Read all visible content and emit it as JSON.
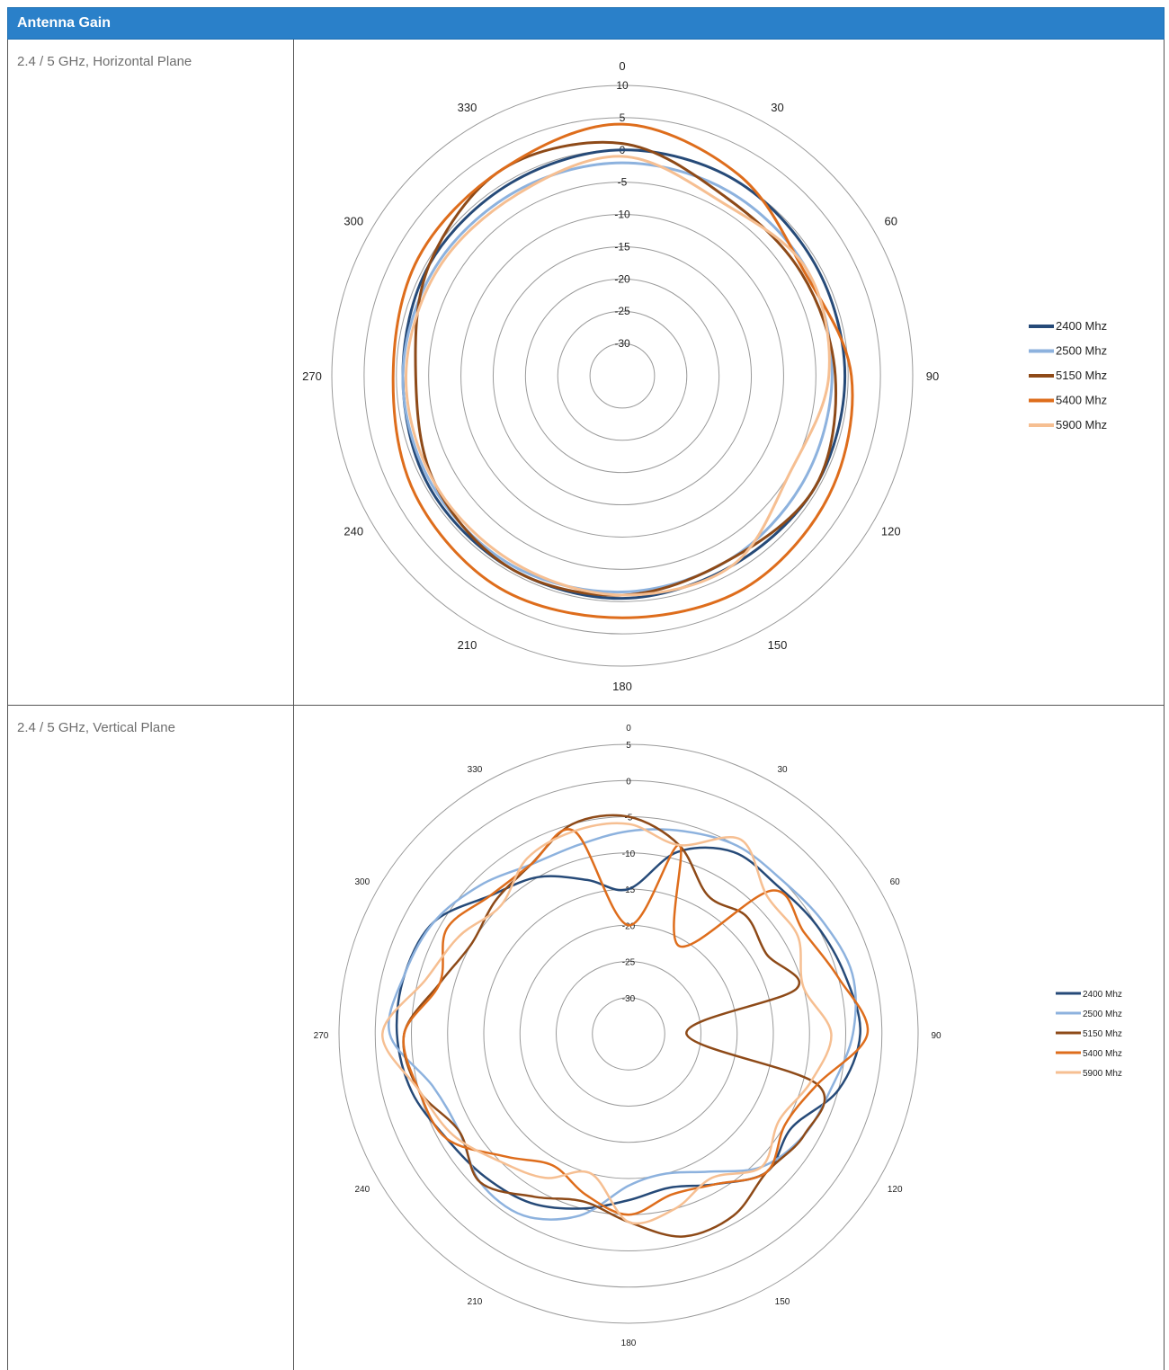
{
  "header": {
    "title": "Antenna Gain"
  },
  "rows": [
    {
      "label": "2.4 / 5 GHz, Horizontal Plane"
    },
    {
      "label": "2.4 / 5 GHz, Vertical Plane"
    }
  ],
  "chart_data": [
    {
      "type": "polar-line",
      "title": "",
      "angle_labels": [
        "0",
        "30",
        "60",
        "90",
        "120",
        "150",
        "180",
        "210",
        "240",
        "270",
        "300",
        "330"
      ],
      "radial_ticks": [
        -30,
        -25,
        -20,
        -15,
        -10,
        -5,
        0,
        5,
        10
      ],
      "rlim": [
        -35,
        10
      ],
      "legend_position": "right",
      "series": [
        {
          "name": "2400 Mhz",
          "color": "#264a78",
          "angles": [
            0,
            30,
            60,
            90,
            120,
            150,
            180,
            210,
            240,
            270,
            300,
            330
          ],
          "values": [
            0,
            0,
            -0.5,
            -0.5,
            -0.5,
            -1,
            -0.5,
            -0.5,
            -0.5,
            -1,
            -0.5,
            -0.5
          ]
        },
        {
          "name": "2500 Mhz",
          "color": "#8db2de",
          "angles": [
            0,
            30,
            60,
            90,
            120,
            150,
            180,
            210,
            240,
            270,
            300,
            330
          ],
          "values": [
            -2,
            -2,
            -2,
            -2.5,
            -2.5,
            -2,
            -1.5,
            -1,
            -1,
            -1,
            -1.5,
            -2
          ]
        },
        {
          "name": "5150 Mhz",
          "color": "#8e4a18",
          "angles": [
            0,
            30,
            60,
            90,
            120,
            150,
            180,
            210,
            240,
            270,
            300,
            330
          ],
          "values": [
            1,
            -3,
            -3,
            -2,
            -0.5,
            -2,
            -1,
            -0.5,
            -1.5,
            -3,
            -0.5,
            2
          ]
        },
        {
          "name": "5400 Mhz",
          "color": "#de6d1c",
          "angles": [
            0,
            30,
            60,
            90,
            120,
            150,
            180,
            210,
            240,
            270,
            300,
            330
          ],
          "values": [
            4,
            1,
            -2.5,
            0.5,
            2,
            3,
            2.5,
            3,
            2,
            0.5,
            1.5,
            2
          ]
        },
        {
          "name": "5900 Mhz",
          "color": "#f6bf92",
          "angles": [
            0,
            30,
            60,
            90,
            120,
            150,
            180,
            210,
            240,
            270,
            300,
            330
          ],
          "values": [
            -1,
            -4,
            -2,
            -3,
            -5,
            -1,
            -1,
            -1.5,
            -1.5,
            -1.5,
            -2,
            -2.5
          ]
        }
      ]
    },
    {
      "type": "polar-line",
      "title": "",
      "angle_labels": [
        "0",
        "30",
        "60",
        "90",
        "120",
        "150",
        "180",
        "210",
        "240",
        "270",
        "300",
        "330"
      ],
      "radial_ticks": [
        -30,
        -25,
        -20,
        -15,
        -10,
        -5,
        0,
        5
      ],
      "rlim": [
        -35,
        5
      ],
      "legend_position": "right",
      "series": [
        {
          "name": "2400 Mhz",
          "color": "#264a78",
          "angles": [
            0,
            15,
            30,
            45,
            60,
            75,
            90,
            105,
            120,
            135,
            150,
            165,
            180,
            195,
            210,
            225,
            240,
            255,
            270,
            285,
            300,
            315,
            330,
            345
          ],
          "values": [
            -15,
            -9,
            -6,
            -6,
            -5,
            -4,
            -3,
            -5,
            -9,
            -8,
            -11,
            -13,
            -12,
            -10,
            -8,
            -7,
            -6,
            -4,
            -3,
            -3,
            -4,
            -8,
            -10,
            -13
          ]
        },
        {
          "name": "2500 Mhz",
          "color": "#8db2de",
          "angles": [
            0,
            15,
            30,
            45,
            60,
            75,
            90,
            105,
            120,
            135,
            150,
            165,
            180,
            195,
            210,
            225,
            240,
            255,
            270,
            285,
            300,
            315,
            330,
            345
          ],
          "values": [
            -7,
            -6,
            -5,
            -5,
            -4,
            -3,
            -4,
            -6,
            -7,
            -9,
            -13,
            -15,
            -14,
            -9,
            -6,
            -6,
            -8,
            -7,
            -2,
            -3,
            -4,
            -6,
            -8,
            -8
          ]
        },
        {
          "name": "5150 Mhz",
          "color": "#8e4a18",
          "angles": [
            0,
            15,
            30,
            45,
            60,
            75,
            90,
            105,
            120,
            135,
            150,
            165,
            180,
            195,
            210,
            225,
            240,
            255,
            270,
            285,
            300,
            315,
            330,
            345
          ],
          "values": [
            -5,
            -8,
            -13,
            -12,
            -13,
            -11,
            -27,
            -8,
            -7,
            -8,
            -6,
            -6,
            -9,
            -11,
            -9,
            -6,
            -8,
            -5,
            -4,
            -8,
            -10,
            -9,
            -8,
            -5
          ]
        },
        {
          "name": "5400 Mhz",
          "color": "#de6d1c",
          "angles": [
            0,
            15,
            30,
            45,
            60,
            75,
            90,
            105,
            120,
            135,
            150,
            165,
            180,
            195,
            210,
            225,
            240,
            255,
            270,
            285,
            300,
            315,
            330,
            345
          ],
          "values": [
            -20,
            -8,
            -21,
            -7,
            -7,
            -5,
            -2,
            -8,
            -10,
            -8,
            -11,
            -12,
            -10,
            -12,
            -14,
            -11,
            -6,
            -5,
            -4,
            -8,
            -6,
            -8,
            -8,
            -6
          ]
        },
        {
          "name": "5900 Mhz",
          "color": "#f6bf92",
          "angles": [
            0,
            15,
            30,
            45,
            60,
            75,
            90,
            105,
            120,
            135,
            150,
            165,
            180,
            195,
            210,
            225,
            240,
            255,
            270,
            285,
            300,
            315,
            330,
            345
          ],
          "values": [
            -6,
            -8,
            -4,
            -8,
            -8,
            -10,
            -7,
            -9,
            -11,
            -9,
            -12,
            -10,
            -9,
            -15,
            -12,
            -10,
            -7,
            -5,
            -1,
            -6,
            -8,
            -10,
            -7,
            -6
          ]
        }
      ]
    }
  ]
}
